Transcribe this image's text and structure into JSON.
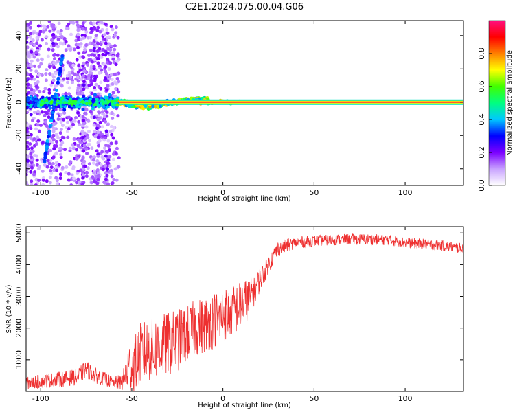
{
  "title": "C2E1.2024.075.00.04.G06",
  "chart_data": [
    {
      "type": "heatmap",
      "xlabel": "Height of straight line (km)",
      "ylabel": "Frequency (Hz)",
      "xlim": [
        -108,
        132
      ],
      "ylim": [
        -50,
        49
      ],
      "x_ticks": [
        -100,
        -50,
        0,
        50,
        100
      ],
      "y_ticks": [
        -40,
        -20,
        0,
        20,
        40
      ],
      "grid": false,
      "colorbar": {
        "label": "Normalized spectral amplitude",
        "range": [
          0,
          1
        ],
        "ticks": [
          "0.0",
          "0.2",
          "0.4",
          "0.6",
          "0.8"
        ],
        "colors": [
          "#ffffff",
          "#c8a2ff",
          "#7b00ff",
          "#0000ff",
          "#00c8ff",
          "#00ff80",
          "#40ff00",
          "#ffff00",
          "#ff8000",
          "#ff0000",
          "#ff1080"
        ]
      },
      "features": {
        "carrier_line": {
          "frequency": 0,
          "from_km": -57,
          "to_km": 132,
          "amplitude": 1.0,
          "color": "#ff2040"
        },
        "noise_region_km": [
          -108,
          -57
        ],
        "diagonal_streak": {
          "from": {
            "x": -98,
            "y": -36
          },
          "to": {
            "x": -88,
            "y": 28
          }
        }
      }
    },
    {
      "type": "line",
      "xlabel": "Height of straight line (km)",
      "ylabel": "SNR (10 * v/v)",
      "xlim": [
        -108,
        132
      ],
      "ylim": [
        0,
        5200
      ],
      "x_ticks": [
        -100,
        -50,
        0,
        50,
        100
      ],
      "y_ticks": [
        1000,
        2000,
        3000,
        4000,
        5000
      ],
      "grid": false,
      "series": [
        {
          "color": "#ee3030",
          "x": [
            -108,
            -100,
            -90,
            -80,
            -75,
            -70,
            -60,
            -55,
            -52,
            -48,
            -45,
            -40,
            -35,
            -30,
            -25,
            -20,
            -15,
            -10,
            -5,
            0,
            5,
            10,
            15,
            20,
            25,
            30,
            40,
            50,
            60,
            70,
            80,
            90,
            100,
            110,
            120,
            132
          ],
          "y": [
            250,
            320,
            380,
            450,
            700,
            500,
            280,
            300,
            700,
            900,
            1200,
            1300,
            1400,
            1500,
            1600,
            1800,
            2000,
            2100,
            2250,
            2400,
            2550,
            2700,
            3000,
            3500,
            4000,
            4500,
            4700,
            4750,
            4780,
            4800,
            4800,
            4780,
            4700,
            4650,
            4600,
            4500
          ],
          "noise_amplitude": [
            200,
            220,
            240,
            260,
            280,
            250,
            180,
            300,
            800,
            900,
            1000,
            1000,
            1000,
            1000,
            1000,
            900,
            900,
            900,
            900,
            900,
            800,
            800,
            600,
            400,
            300,
            250,
            180,
            180,
            170,
            170,
            170,
            170,
            170,
            170,
            170,
            170
          ]
        }
      ]
    }
  ]
}
